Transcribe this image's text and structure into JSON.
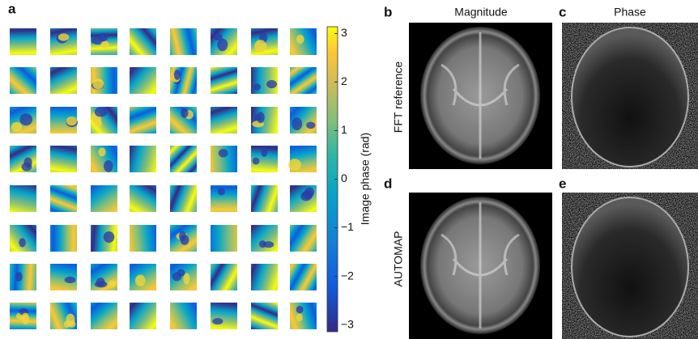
{
  "panel_labels": [
    "a",
    "b",
    "c",
    "d",
    "e"
  ],
  "columns": [
    "Magnitude",
    "Phase"
  ],
  "rows": [
    "FFT reference",
    "AUTOMAP"
  ],
  "colorbar": {
    "label": "Image phase (rad)",
    "lim": [
      -3.14,
      3.14
    ],
    "ticks": [
      {
        "value": -3,
        "label": "−3"
      },
      {
        "value": -2,
        "label": "−2"
      },
      {
        "value": -1,
        "label": "−1"
      },
      0,
      1,
      2,
      3
    ]
  }
}
